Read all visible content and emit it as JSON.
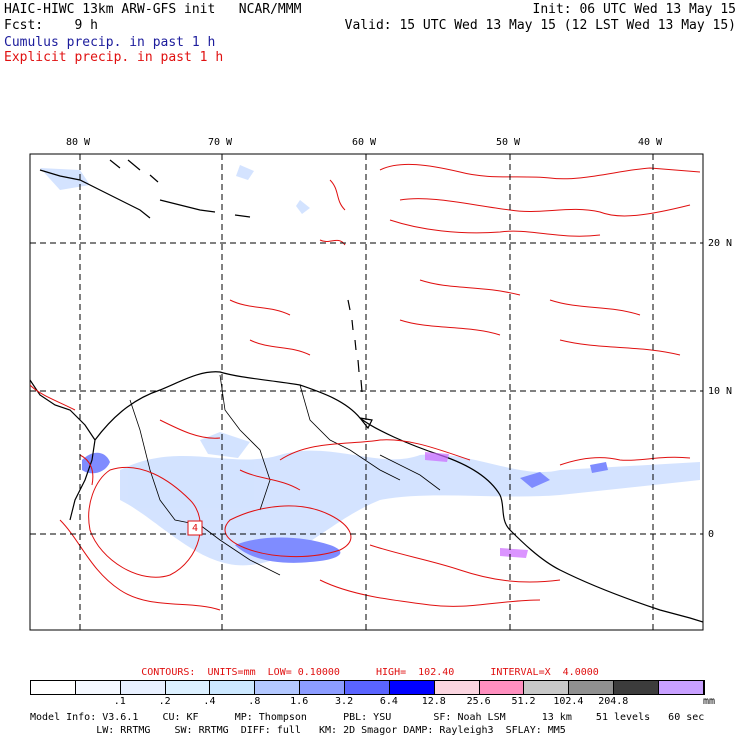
{
  "header": {
    "model_line": "HAIC-HIWC 13km ARW-GFS init   NCAR/MMM",
    "init": "Init: 06 UTC Wed 13 May 15",
    "fcst": "Fcst:    9 h",
    "valid": "Valid: 15 UTC Wed 13 May 15 (12 LST Wed 13 May 15)",
    "legend_cumulus": "Cumulus precip. in past 1 h",
    "legend_explicit": "Explicit precip. in past 1 h"
  },
  "map": {
    "lon_labels": [
      "80 W",
      "70 W",
      "60 W",
      "50 W",
      "40 W"
    ],
    "lat_labels": [
      "20 N",
      "10 N",
      "0"
    ],
    "box_label": "4",
    "colors": {
      "coast": "#000000",
      "explicit_contour": "#e01010",
      "cumulus_light": "#cfe0ff",
      "cumulus_mid": "#7f8cff",
      "highlight": "#cc66ff"
    }
  },
  "contours": {
    "line": "CONTOURS:  UNITS=mm  LOW= 0.10000      HIGH=  102.40      INTERVAL=X  4.0000"
  },
  "scale": {
    "colors": [
      "#ffffff",
      "#f4f8ff",
      "#e8f0ff",
      "#dcf0ff",
      "#cce8ff",
      "#b3c8ff",
      "#8c9cff",
      "#5a64ff",
      "#0000ff",
      "#fbd5e0",
      "#ff8fbf",
      "#c8c8c8",
      "#909090",
      "#3c3c3c",
      "#c8a0ff"
    ],
    "ticks": [
      ".1",
      ".2",
      ".4",
      ".8",
      "1.6",
      "3.2",
      "6.4",
      "12.8",
      "25.6",
      "51.2",
      "102.4",
      "204.8"
    ],
    "unit": "mm"
  },
  "footer": {
    "line1": "Model Info: V3.6.1    CU: KF      MP: Thompson      PBL: YSU       SF: Noah LSM      13 km    51 levels   60 sec",
    "line2": "           LW: RRTMG    SW: RRTMG  DIFF: full   KM: 2D Smagor DAMP: Rayleigh3  SFLAY: MM5"
  }
}
